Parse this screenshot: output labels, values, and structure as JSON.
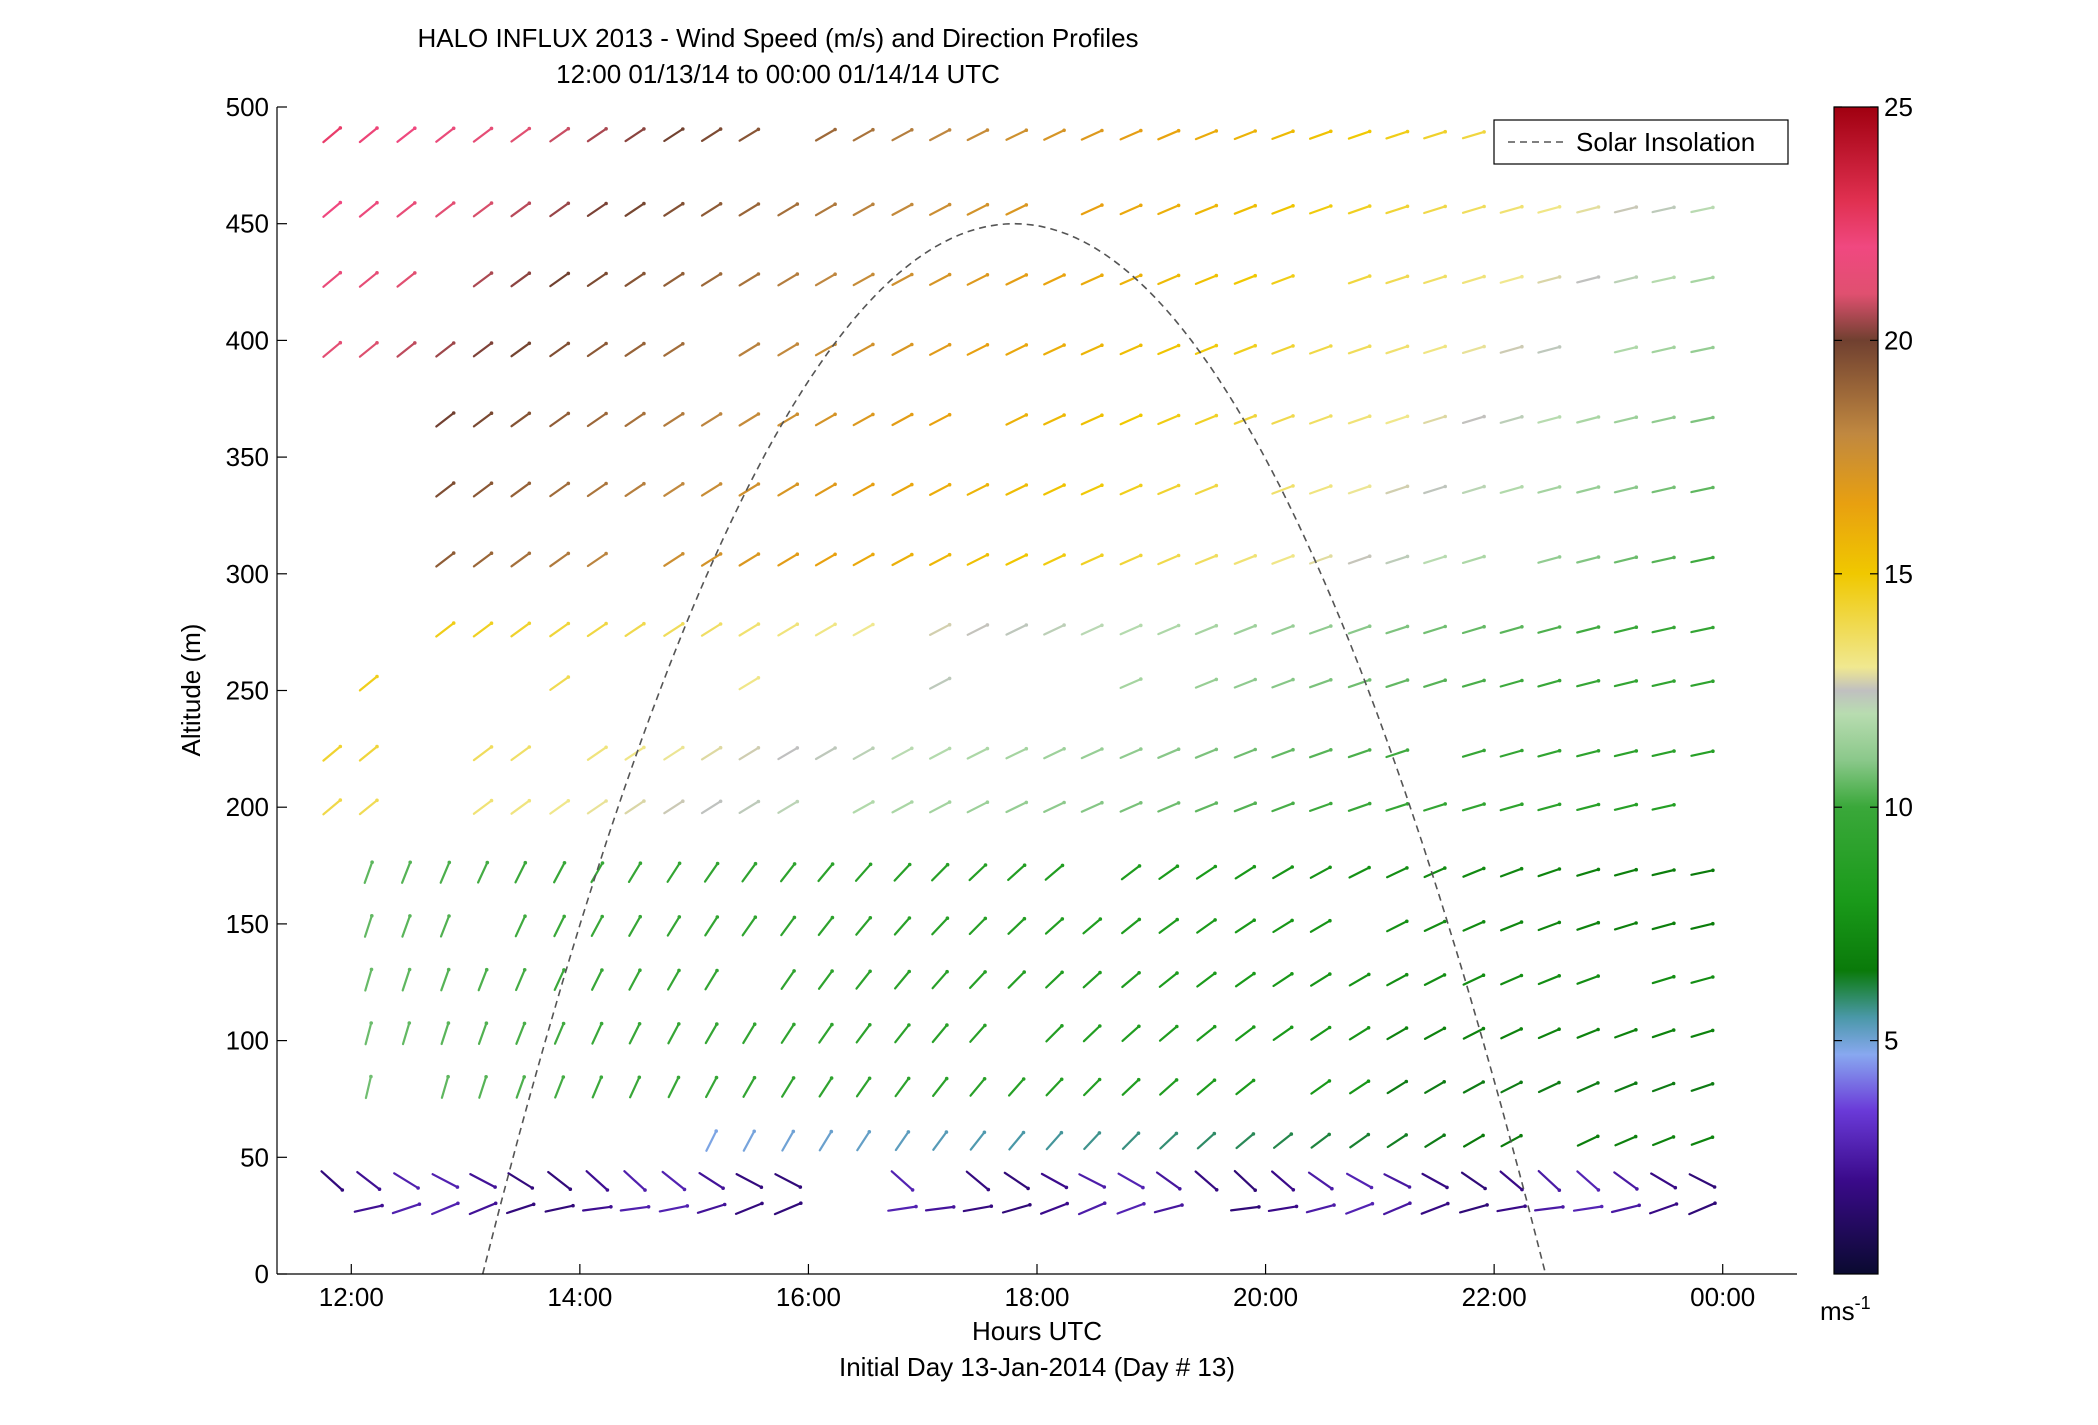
{
  "chart_data": {
    "type": "quiver",
    "title": "HALO INFLUX 2013 - Wind Speed (m/s) and Direction Profiles",
    "subtitle": "12:00 01/13/14 to 00:00 01/14/14  UTC",
    "xlabel": "Hours UTC",
    "xlabel2": "Initial Day 13-Jan-2014 (Day # 13)",
    "ylabel": "Altitude (m)",
    "xlim": [
      11.35,
      24.65
    ],
    "ylim": [
      0,
      500
    ],
    "x_ticks": [
      12,
      14,
      16,
      18,
      20,
      22,
      24
    ],
    "x_tick_labels": [
      "12:00",
      "14:00",
      "16:00",
      "18:00",
      "20:00",
      "22:00",
      "00:00"
    ],
    "y_ticks": [
      0,
      50,
      100,
      150,
      200,
      250,
      300,
      350,
      400,
      450,
      500
    ],
    "y_tick_labels": [
      "0",
      "50",
      "100",
      "150",
      "200",
      "250",
      "300",
      "350",
      "400",
      "450",
      "500"
    ],
    "legend": {
      "entries": [
        "Solar Insolation"
      ],
      "placement": "top-right",
      "line_color": "#555555"
    },
    "colorbar": {
      "range": [
        0,
        25
      ],
      "ticks": [
        5,
        10,
        15,
        20,
        25
      ],
      "tick_labels": [
        "5",
        "10",
        "15",
        "20",
        "25"
      ],
      "unit_base": "ms",
      "unit_exp": "-1",
      "stops": [
        [
          0,
          "#0a0a30"
        ],
        [
          2,
          "#3a0a8a"
        ],
        [
          3.5,
          "#6a3ad8"
        ],
        [
          4.7,
          "#88a8f0"
        ],
        [
          5.5,
          "#4a98a8"
        ],
        [
          6.5,
          "#0a7a0a"
        ],
        [
          8,
          "#1a9a1a"
        ],
        [
          10,
          "#3aa83a"
        ],
        [
          11,
          "#8ac88a"
        ],
        [
          12,
          "#b8dcb0"
        ],
        [
          12.5,
          "#c0c0c0"
        ],
        [
          13,
          "#f0e890"
        ],
        [
          15,
          "#f0c800"
        ],
        [
          16.5,
          "#e8a010"
        ],
        [
          18,
          "#c08840"
        ],
        [
          20,
          "#704030"
        ],
        [
          21,
          "#e05070"
        ],
        [
          22,
          "#f04880"
        ],
        [
          23,
          "#e03050"
        ],
        [
          25,
          "#a00010"
        ]
      ]
    },
    "solar_curve": {
      "t_start": 13.15,
      "t_end": 22.45,
      "t_peak": 17.8,
      "peak_altitude": 450
    },
    "barb_altitudes": [
      28,
      40,
      57,
      80,
      103,
      126,
      149,
      172,
      200,
      223,
      253,
      276,
      306,
      336,
      366,
      396,
      426,
      456,
      488
    ],
    "barb_times": [
      11.83,
      12.15,
      12.48,
      12.82,
      13.15,
      13.48,
      13.82,
      14.15,
      14.48,
      14.82,
      15.15,
      15.48,
      15.82,
      16.15,
      16.48,
      16.82,
      17.15,
      17.48,
      17.82,
      18.15,
      18.48,
      18.82,
      19.15,
      19.48,
      19.82,
      20.15,
      20.48,
      20.82,
      21.15,
      21.48,
      21.82,
      22.15,
      22.48,
      22.82,
      23.15,
      23.48,
      23.82
    ],
    "wind_field_note_free": true
  }
}
